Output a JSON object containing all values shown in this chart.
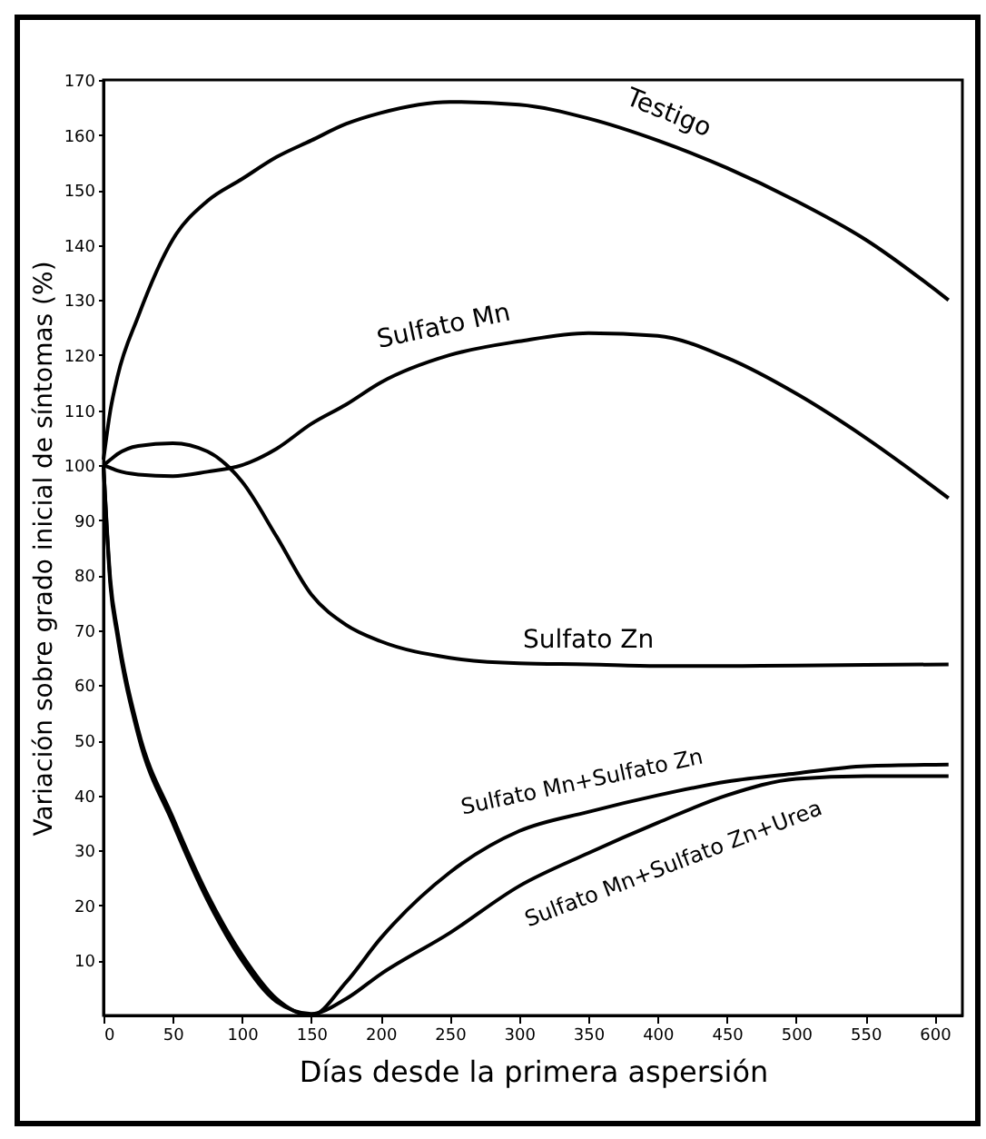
{
  "chart_data": {
    "type": "line",
    "xlabel": "Días desde la primera aspersión",
    "ylabel": "Variación sobre grado inicial de síntomas (%)",
    "x": [
      0,
      5,
      10,
      25,
      50,
      75,
      100,
      125,
      150,
      175,
      200,
      250,
      300,
      350,
      400,
      450,
      500,
      550,
      610
    ],
    "xlim": [
      0,
      620
    ],
    "xticks": [
      0,
      50,
      100,
      150,
      200,
      250,
      300,
      350,
      400,
      450,
      500,
      550,
      600
    ],
    "ylim": [
      0,
      170
    ],
    "yticks": [
      10,
      20,
      30,
      40,
      50,
      60,
      70,
      80,
      90,
      100,
      110,
      120,
      130,
      140,
      150,
      160,
      170
    ],
    "grid": false,
    "legend": false,
    "marker": "none",
    "line_style": "solid",
    "series": [
      {
        "name": "Testigo",
        "color": "#000000",
        "values": [
          101,
          110,
          116,
          127,
          141,
          148,
          152,
          156,
          159,
          162,
          164,
          166,
          165.5,
          163,
          159,
          154,
          148,
          141,
          130
        ]
      },
      {
        "name": "Sulfato Mn",
        "color": "#000000",
        "values": [
          100,
          99.5,
          99,
          98.3,
          98,
          98.8,
          100,
          103,
          107.5,
          111,
          115,
          120,
          122.5,
          124,
          123.5,
          119.5,
          113,
          105,
          94
        ]
      },
      {
        "name": "Sulfato Zn",
        "color": "#000000",
        "values": [
          100,
          101,
          102,
          103.5,
          104,
          102.5,
          97,
          87,
          76.5,
          71,
          68,
          65,
          64,
          63.8,
          63.5,
          63.5,
          63.6,
          63.7,
          63.8
        ]
      },
      {
        "name": "Sulfato Mn+Sulfato Zn",
        "color": "#000000",
        "values": [
          100,
          79,
          70,
          52,
          36,
          22,
          11,
          3,
          0,
          6,
          14,
          26,
          33.5,
          37,
          40,
          42.5,
          44,
          45.3,
          45.6
        ]
      },
      {
        "name": "Sulfato Mn+Sulfato Zn+Urea",
        "color": "#000000",
        "values": [
          100,
          78,
          69,
          51,
          35,
          21,
          10,
          2.5,
          0.3,
          3,
          7.5,
          15,
          23.5,
          29.5,
          35,
          40,
          43,
          43.5,
          43.5
        ]
      }
    ]
  }
}
